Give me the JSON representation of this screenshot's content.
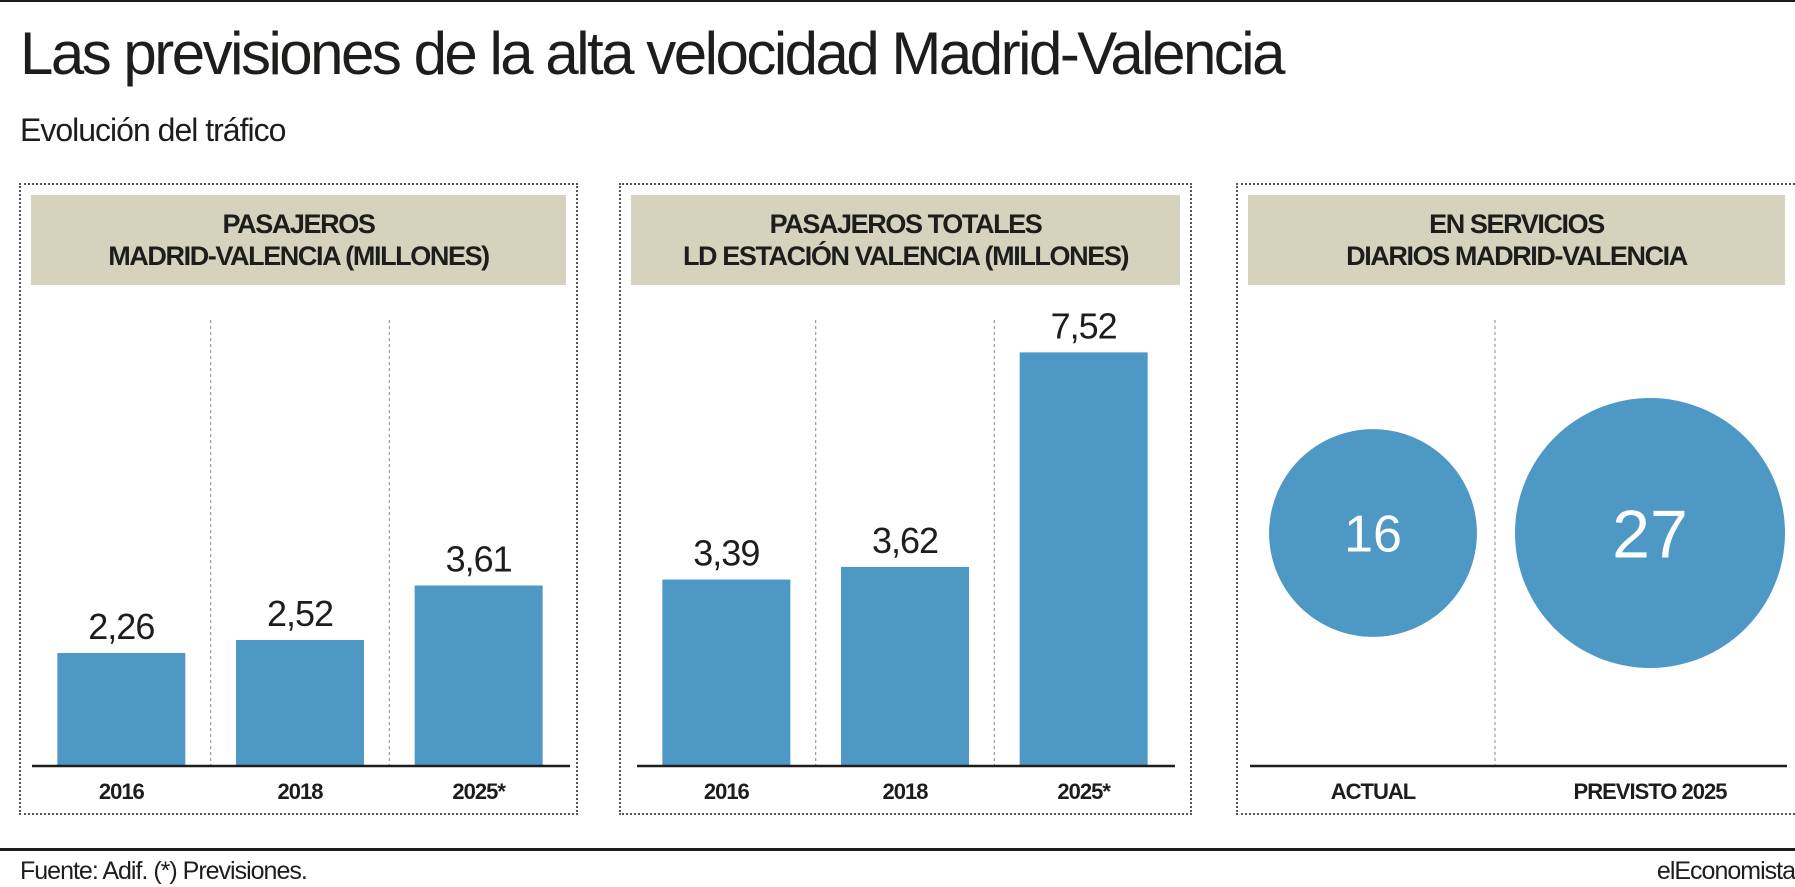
{
  "title": "Las previsiones de la alta velocidad Madrid-Valencia",
  "subtitle": "Evolución del tráfico",
  "colors": {
    "bar": "#4e98c6",
    "header_bg": "#d5d3bd",
    "text": "#1d1d1b"
  },
  "chart_data": [
    {
      "type": "bar",
      "title_lines": [
        "PASAJEROS",
        "MADRID-VALENCIA (MILLONES)"
      ],
      "categories": [
        "2016",
        "2018",
        "2025*"
      ],
      "values": [
        2.26,
        2.52,
        3.61
      ],
      "value_labels": [
        "2,26",
        "2,52",
        "3,61"
      ],
      "ylim": [
        0,
        10
      ]
    },
    {
      "type": "bar",
      "title_lines": [
        "PASAJEROS TOTALES",
        "LD ESTACIÓN VALENCIA (MILLONES)"
      ],
      "categories": [
        "2016",
        "2018",
        "2025*"
      ],
      "values": [
        3.39,
        3.62,
        7.52
      ],
      "value_labels": [
        "3,39",
        "3,62",
        "7,52"
      ],
      "ylim": [
        0,
        9
      ]
    },
    {
      "type": "bubble",
      "title_lines": [
        "EN SERVICIOS",
        "DIARIOS MADRID-VALENCIA"
      ],
      "categories": [
        "ACTUAL",
        "PREVISTO 2025"
      ],
      "values": [
        16,
        27
      ],
      "value_labels": [
        "16",
        "27"
      ]
    }
  ],
  "source": "Fuente: Adif. (*) Previsiones.",
  "brand": "elEconomista"
}
